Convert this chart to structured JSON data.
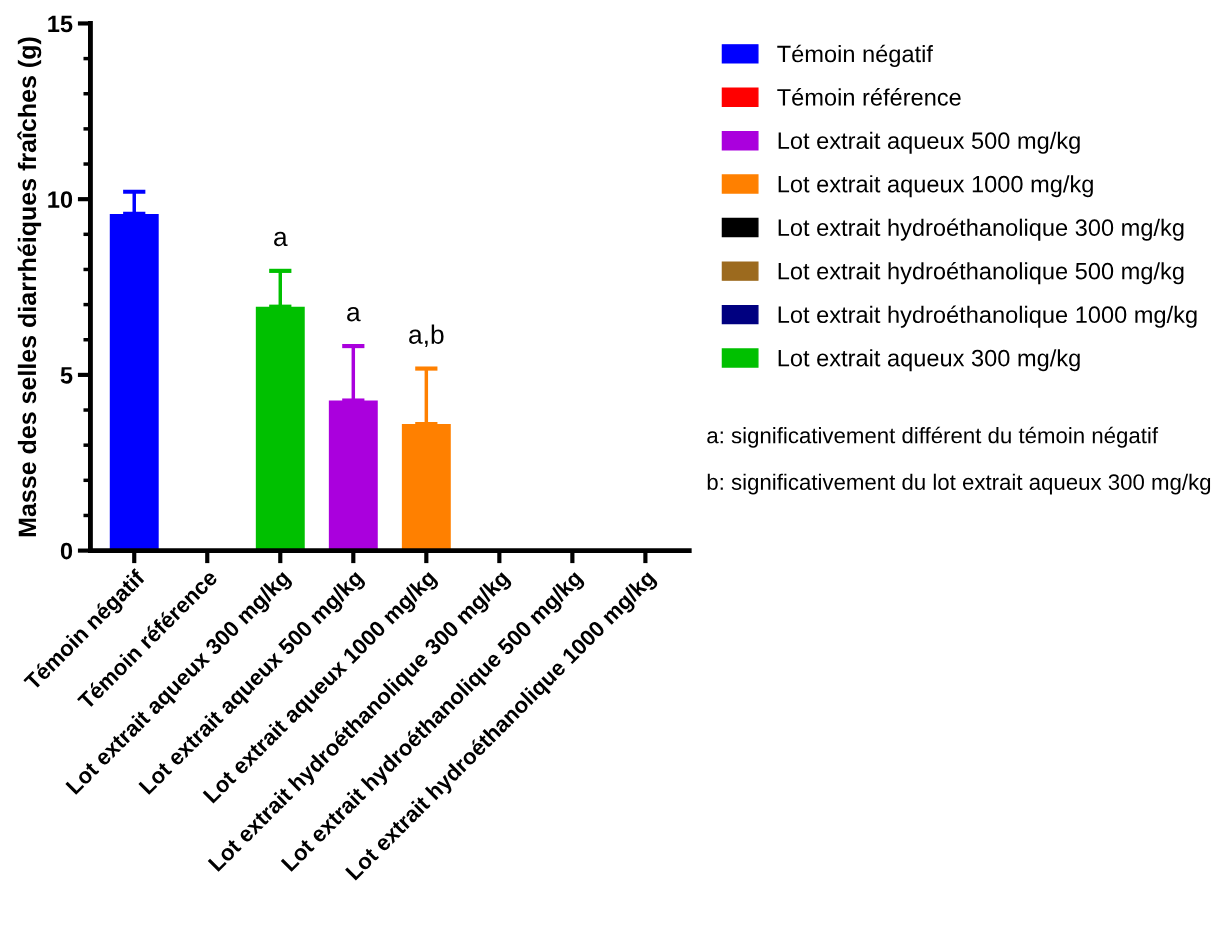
{
  "chart_data": {
    "type": "bar",
    "ylabel": "Masse des selles diarrhéiques fraîches (g)",
    "categories": [
      "Témoin négatif",
      "Témoin référence",
      "Lot extrait aqueux 300 mg/kg",
      "Lot extrait aqueux 500 mg/kg",
      "Lot extrait aqueux 1000 mg/kg",
      "Lot extrait hydroéthanolique 300 mg/kg",
      "Lot extrait hydroéthanolique 500 mg/kg",
      "Lot extrait hydroéthanolique 1000 mg/kg"
    ],
    "series": [
      {
        "name": "Témoin négatif",
        "color": "#0000ff",
        "values": [
          9.58,
          null,
          null,
          null,
          null,
          null,
          null,
          null
        ],
        "errors": [
          [
            9.58,
            10.21
          ],
          null,
          null,
          null,
          null,
          null,
          null,
          null
        ]
      },
      {
        "name": "Témoin référence",
        "color": "#ff0000",
        "values": [
          null,
          null,
          null,
          null,
          null,
          null,
          null,
          null
        ]
      },
      {
        "name": "Lot extrait aqueux 500 mg/kg",
        "color": "#aa00dd",
        "values": [
          null,
          null,
          null,
          4.27,
          null,
          null,
          null,
          null
        ],
        "errors": [
          null,
          null,
          null,
          [
            4.27,
            5.82
          ],
          null,
          null,
          null,
          null
        ]
      },
      {
        "name": "Lot extrait aqueux 1000 mg/kg",
        "color": "#ff8000",
        "values": [
          null,
          null,
          null,
          null,
          3.6,
          null,
          null,
          null
        ],
        "errors": [
          null,
          null,
          null,
          null,
          [
            3.6,
            5.18
          ],
          null,
          null,
          null
        ]
      },
      {
        "name": "Lot extrait hydroéthanolique 300 mg/kg",
        "color": "#000000",
        "values": [
          null,
          null,
          null,
          null,
          null,
          null,
          null,
          null
        ]
      },
      {
        "name": "Lot extrait hydroéthanolique 500 mg/kg",
        "color": "#9c6a1e",
        "values": [
          null,
          null,
          null,
          null,
          null,
          null,
          null,
          null
        ]
      },
      {
        "name": "Lot extrait hydroéthanolique 1000 mg/kg",
        "color": "#000080",
        "values": [
          null,
          null,
          null,
          null,
          null,
          null,
          null,
          null
        ]
      },
      {
        "name": "Lot extrait aqueux 300 mg/kg",
        "color": "#00c000",
        "values": [
          null,
          null,
          6.94,
          null,
          null,
          null,
          null,
          null
        ],
        "errors": [
          null,
          null,
          [
            6.94,
            7.96
          ],
          null,
          null,
          null,
          null,
          null
        ]
      }
    ],
    "ylim": [
      0,
      15
    ],
    "yticks": [
      0,
      {
        "value": 1,
        "label": null
      },
      {
        "value": 2,
        "label": null
      },
      {
        "value": 3,
        "label": null
      },
      {
        "value": 4,
        "label": null
      },
      5,
      {
        "value": 6,
        "label": null
      },
      {
        "value": 7,
        "label": null
      },
      {
        "value": 8,
        "label": null
      },
      {
        "value": 9,
        "label": null
      },
      10,
      {
        "value": 11,
        "label": null
      },
      {
        "value": 12,
        "label": null
      },
      {
        "value": 13,
        "label": null
      },
      {
        "value": 14,
        "label": null
      },
      15
    ],
    "grid": false,
    "legend": "right",
    "annotations": [
      {
        "text": "a",
        "x": "Lot extrait aqueux 300 mg/kg",
        "y": 7.96
      },
      {
        "text": "a",
        "x": "Lot extrait aqueux 500 mg/kg",
        "y": 5.82
      },
      {
        "text": "a,b",
        "x": "Lot extrait aqueux 1000 mg/kg",
        "y": 5.18
      },
      "a: significativement différent du témoin négatif",
      "b: significativement du lot extrait aqueux 300 mg/kg"
    ]
  }
}
